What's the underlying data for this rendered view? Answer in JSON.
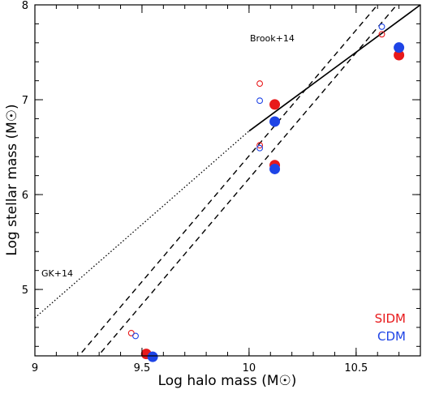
{
  "chart_data": {
    "type": "scatter",
    "xlabel": "Log halo mass (M☉)",
    "ylabel": "Log stellar mass (M☉)",
    "xlim": [
      9.0,
      10.8
    ],
    "ylim": [
      4.3,
      8.0
    ],
    "xticks": [
      "9",
      "9.5",
      "10",
      "10.5"
    ],
    "yticks": [
      "5",
      "6",
      "7",
      "8"
    ],
    "x_tick_values": [
      9.0,
      9.5,
      10.0,
      10.5
    ],
    "y_tick_values": [
      5,
      6,
      7,
      8
    ],
    "series": [
      {
        "name": "SIDM",
        "color": "#e8191b",
        "open": [
          [
            9.45,
            4.54
          ],
          [
            10.05,
            7.17
          ],
          [
            10.05,
            6.52
          ],
          [
            10.62,
            7.69
          ]
        ],
        "filled": [
          [
            9.52,
            4.32
          ],
          [
            10.12,
            6.95
          ],
          [
            10.12,
            6.31
          ],
          [
            10.7,
            7.47
          ]
        ]
      },
      {
        "name": "CDM",
        "color": "#1e44e6",
        "open": [
          [
            9.47,
            4.51
          ],
          [
            10.05,
            6.99
          ],
          [
            10.05,
            6.49
          ],
          [
            10.62,
            7.77
          ]
        ],
        "filled": [
          [
            9.55,
            4.29
          ],
          [
            10.12,
            6.77
          ],
          [
            10.12,
            6.27
          ],
          [
            10.7,
            7.55
          ]
        ]
      }
    ],
    "relations": [
      {
        "label": "Brook+14",
        "style": "dashed",
        "lines": [
          [
            [
              9.16,
              4.18
            ],
            [
              10.6,
              8.0
            ]
          ],
          [
            [
              9.25,
              4.18
            ],
            [
              10.69,
              8.0
            ]
          ]
        ]
      },
      {
        "label": "GK+14",
        "style": "solid",
        "lines": [
          [
            [
              10.0,
              6.67
            ],
            [
              10.8,
              8.0
            ]
          ]
        ]
      },
      {
        "label": "",
        "style": "dotted",
        "lines": [
          [
            [
              9.0,
              4.7
            ],
            [
              10.0,
              6.67
            ]
          ]
        ]
      }
    ],
    "annotations": [
      {
        "text": "Brook+14",
        "x": 10.07,
        "y": 7.6
      },
      {
        "text": "GK+14",
        "x": 9.05,
        "y": 5.13
      }
    ],
    "legend": {
      "position": "bottom-right",
      "entries": [
        "SIDM",
        "CDM"
      ]
    }
  }
}
